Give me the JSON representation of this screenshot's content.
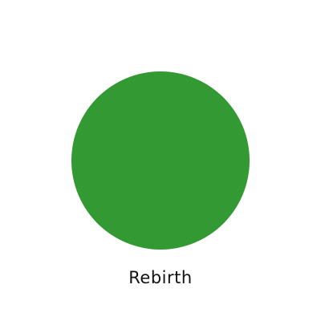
{
  "shape": {
    "type": "circle",
    "color": "#339933"
  },
  "caption": {
    "text": "Rebirth"
  }
}
